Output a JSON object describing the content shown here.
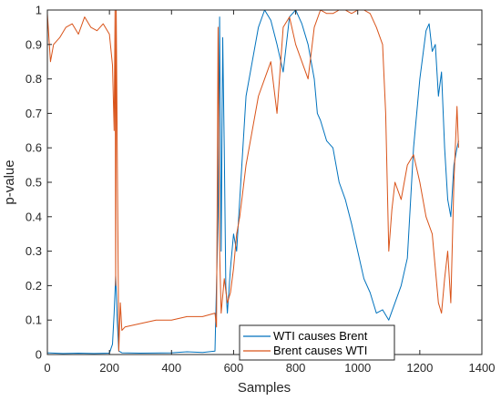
{
  "chart_data": {
    "type": "line",
    "title": "",
    "xlabel": "Samples",
    "ylabel": "p-value",
    "xlim": [
      0,
      1400
    ],
    "ylim": [
      0,
      1
    ],
    "xticks": [
      "0",
      "200",
      "400",
      "600",
      "800",
      "1000",
      "1200",
      "1400"
    ],
    "yticks": [
      "0",
      "0.1",
      "0.2",
      "0.3",
      "0.4",
      "0.5",
      "0.6",
      "0.7",
      "0.8",
      "0.9",
      "1"
    ],
    "grid": false,
    "legend": {
      "placement": "bottom-right"
    },
    "series": [
      {
        "name": "WTI causes Brent",
        "color": "#0072BD",
        "x": [
          0,
          50,
          100,
          150,
          200,
          210,
          215,
          220,
          225,
          230,
          240,
          300,
          400,
          450,
          500,
          540,
          550,
          555,
          560,
          565,
          570,
          575,
          580,
          590,
          600,
          610,
          620,
          640,
          660,
          680,
          700,
          720,
          740,
          760,
          780,
          800,
          820,
          840,
          860,
          870,
          880,
          900,
          920,
          940,
          960,
          980,
          1000,
          1020,
          1040,
          1060,
          1080,
          1100,
          1120,
          1140,
          1160,
          1180,
          1200,
          1220,
          1230,
          1240,
          1250,
          1260,
          1270,
          1280,
          1290,
          1300,
          1310,
          1320,
          1325
        ],
        "y": [
          0.005,
          0.003,
          0.004,
          0.003,
          0.004,
          0.03,
          0.12,
          0.23,
          0.1,
          0.01,
          0.005,
          0.004,
          0.005,
          0.008,
          0.006,
          0.01,
          0.4,
          0.98,
          0.3,
          0.92,
          0.6,
          0.2,
          0.12,
          0.25,
          0.35,
          0.3,
          0.45,
          0.75,
          0.85,
          0.95,
          1.0,
          0.97,
          0.9,
          0.82,
          0.98,
          1.0,
          0.96,
          0.9,
          0.8,
          0.7,
          0.68,
          0.62,
          0.6,
          0.5,
          0.45,
          0.38,
          0.3,
          0.22,
          0.18,
          0.12,
          0.13,
          0.1,
          0.15,
          0.2,
          0.28,
          0.6,
          0.8,
          0.94,
          0.96,
          0.88,
          0.9,
          0.75,
          0.82,
          0.6,
          0.45,
          0.4,
          0.55,
          0.6,
          0.62
        ]
      },
      {
        "name": "Brent causes WTI",
        "color": "#D95319",
        "x": [
          0,
          10,
          20,
          40,
          60,
          80,
          100,
          120,
          140,
          160,
          180,
          200,
          210,
          215,
          218,
          220,
          222,
          225,
          230,
          235,
          240,
          250,
          300,
          350,
          400,
          450,
          500,
          540,
          545,
          550,
          555,
          560,
          570,
          580,
          590,
          600,
          610,
          620,
          640,
          660,
          680,
          700,
          720,
          740,
          760,
          780,
          800,
          820,
          840,
          860,
          880,
          900,
          920,
          940,
          960,
          980,
          1000,
          1020,
          1040,
          1060,
          1080,
          1090,
          1100,
          1110,
          1120,
          1140,
          1160,
          1180,
          1200,
          1220,
          1240,
          1260,
          1270,
          1280,
          1290,
          1300,
          1310,
          1320,
          1325
        ],
        "y": [
          0.99,
          0.85,
          0.9,
          0.92,
          0.95,
          0.96,
          0.93,
          0.98,
          0.95,
          0.94,
          0.96,
          0.93,
          0.84,
          0.65,
          1.0,
          0.2,
          1.0,
          0.6,
          0.01,
          0.15,
          0.07,
          0.08,
          0.09,
          0.1,
          0.1,
          0.11,
          0.11,
          0.12,
          0.08,
          0.95,
          0.3,
          0.12,
          0.22,
          0.15,
          0.18,
          0.25,
          0.35,
          0.4,
          0.55,
          0.65,
          0.75,
          0.8,
          0.85,
          0.7,
          0.95,
          0.98,
          0.9,
          0.85,
          0.8,
          0.95,
          1.0,
          0.99,
          0.99,
          1.0,
          1.0,
          0.99,
          1.0,
          1.0,
          0.99,
          0.95,
          0.9,
          0.7,
          0.3,
          0.42,
          0.5,
          0.45,
          0.55,
          0.58,
          0.5,
          0.4,
          0.35,
          0.15,
          0.12,
          0.22,
          0.3,
          0.15,
          0.5,
          0.72,
          0.6
        ]
      }
    ]
  }
}
